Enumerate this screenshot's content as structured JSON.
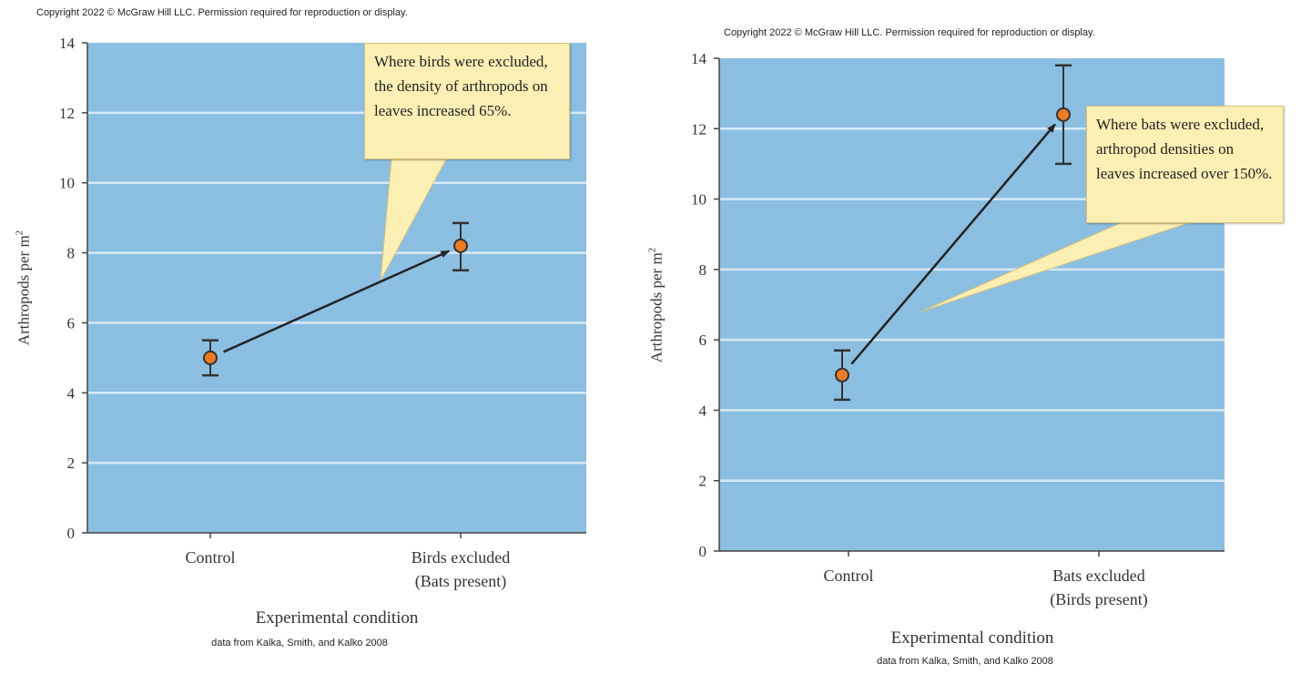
{
  "chart_data": [
    {
      "type": "scatter",
      "copyright": "Copyright 2022 © McGraw Hill LLC. Permission required for reproduction or display.",
      "xlabel": "Experimental condition",
      "ylabel": "Arthropods per m",
      "ylabel_superscript": "2",
      "categories": [
        [
          "Control"
        ],
        [
          "Birds excluded",
          "(Bats present)"
        ]
      ],
      "values": [
        5.0,
        8.2
      ],
      "error_low": [
        4.5,
        7.5
      ],
      "error_high": [
        5.5,
        8.85
      ],
      "ylim": [
        0,
        14
      ],
      "yticks": [
        0,
        2,
        4,
        6,
        8,
        10,
        12,
        14
      ],
      "grid": true,
      "annotation": "Where birds were excluded, the density of arthropods on leaves increased 65%.",
      "source": "data from Kalka, Smith, and Kalko 2008",
      "colors": {
        "plot_bg": "#8bbfe2",
        "marker": "#f07a22",
        "grid": "#d6e8f5",
        "callout": "#fcefb4"
      }
    },
    {
      "type": "scatter",
      "copyright": "Copyright 2022 © McGraw Hill LLC. Permission required for reproduction or display.",
      "xlabel": "Experimental condition",
      "ylabel": "Arthropods per m",
      "ylabel_superscript": "2",
      "categories": [
        [
          "Control"
        ],
        [
          "Bats excluded",
          "(Birds present)"
        ]
      ],
      "values": [
        5.0,
        12.4
      ],
      "error_low": [
        4.3,
        11.0
      ],
      "error_high": [
        5.7,
        13.8
      ],
      "ylim": [
        0,
        14
      ],
      "yticks": [
        0,
        2,
        4,
        6,
        8,
        10,
        12,
        14
      ],
      "grid": true,
      "annotation": "Where bats were excluded, arthropod densities on leaves increased over 150%.",
      "source": "data from Kalka, Smith, and Kalko 2008",
      "colors": {
        "plot_bg": "#8bbfe2",
        "marker": "#f07a22",
        "grid": "#d6e8f5",
        "callout": "#fcefb4"
      }
    }
  ]
}
